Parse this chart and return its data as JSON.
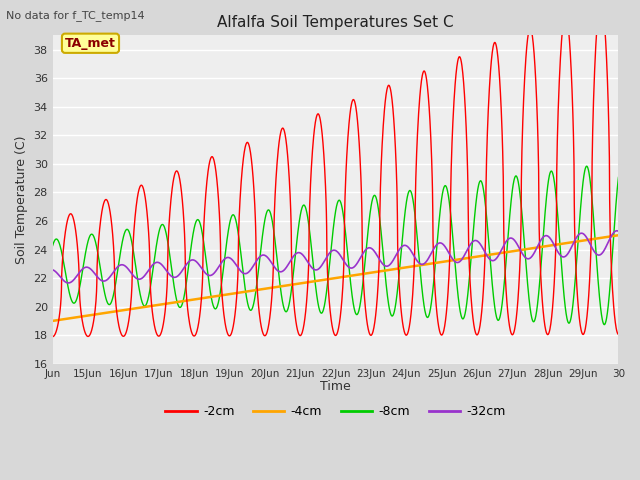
{
  "title": "Alfalfa Soil Temperatures Set C",
  "top_left_note": "No data for f_TC_temp14",
  "ylabel": "Soil Temperature (C)",
  "xlabel": "Time",
  "ylim": [
    16,
    39
  ],
  "yticks": [
    16,
    18,
    20,
    22,
    24,
    26,
    28,
    30,
    32,
    34,
    36,
    38
  ],
  "fig_bg_color": "#d8d8d8",
  "plot_bg_color": "#eeeeee",
  "grid_color": "#ffffff",
  "legend_colors": [
    "#ff0000",
    "#ffa500",
    "#00cc00",
    "#9933cc"
  ],
  "legend_labels": [
    "-2cm",
    "-4cm",
    "-8cm",
    "-32cm"
  ],
  "ta_met_label": "TA_met",
  "ta_met_facecolor": "#ffff99",
  "ta_met_edgecolor": "#ccaa00",
  "ta_met_textcolor": "#8B0000",
  "note_color": "#444444",
  "xtick_labels": [
    "Jun",
    "15Jun",
    "16Jun",
    "17Jun",
    "18Jun",
    "19Jun",
    "20Jun",
    "21Jun",
    "22Jun",
    "23Jun",
    "24Jun",
    "25Jun",
    "26Jun",
    "27Jun",
    "28Jun",
    "29Jun",
    "30"
  ]
}
